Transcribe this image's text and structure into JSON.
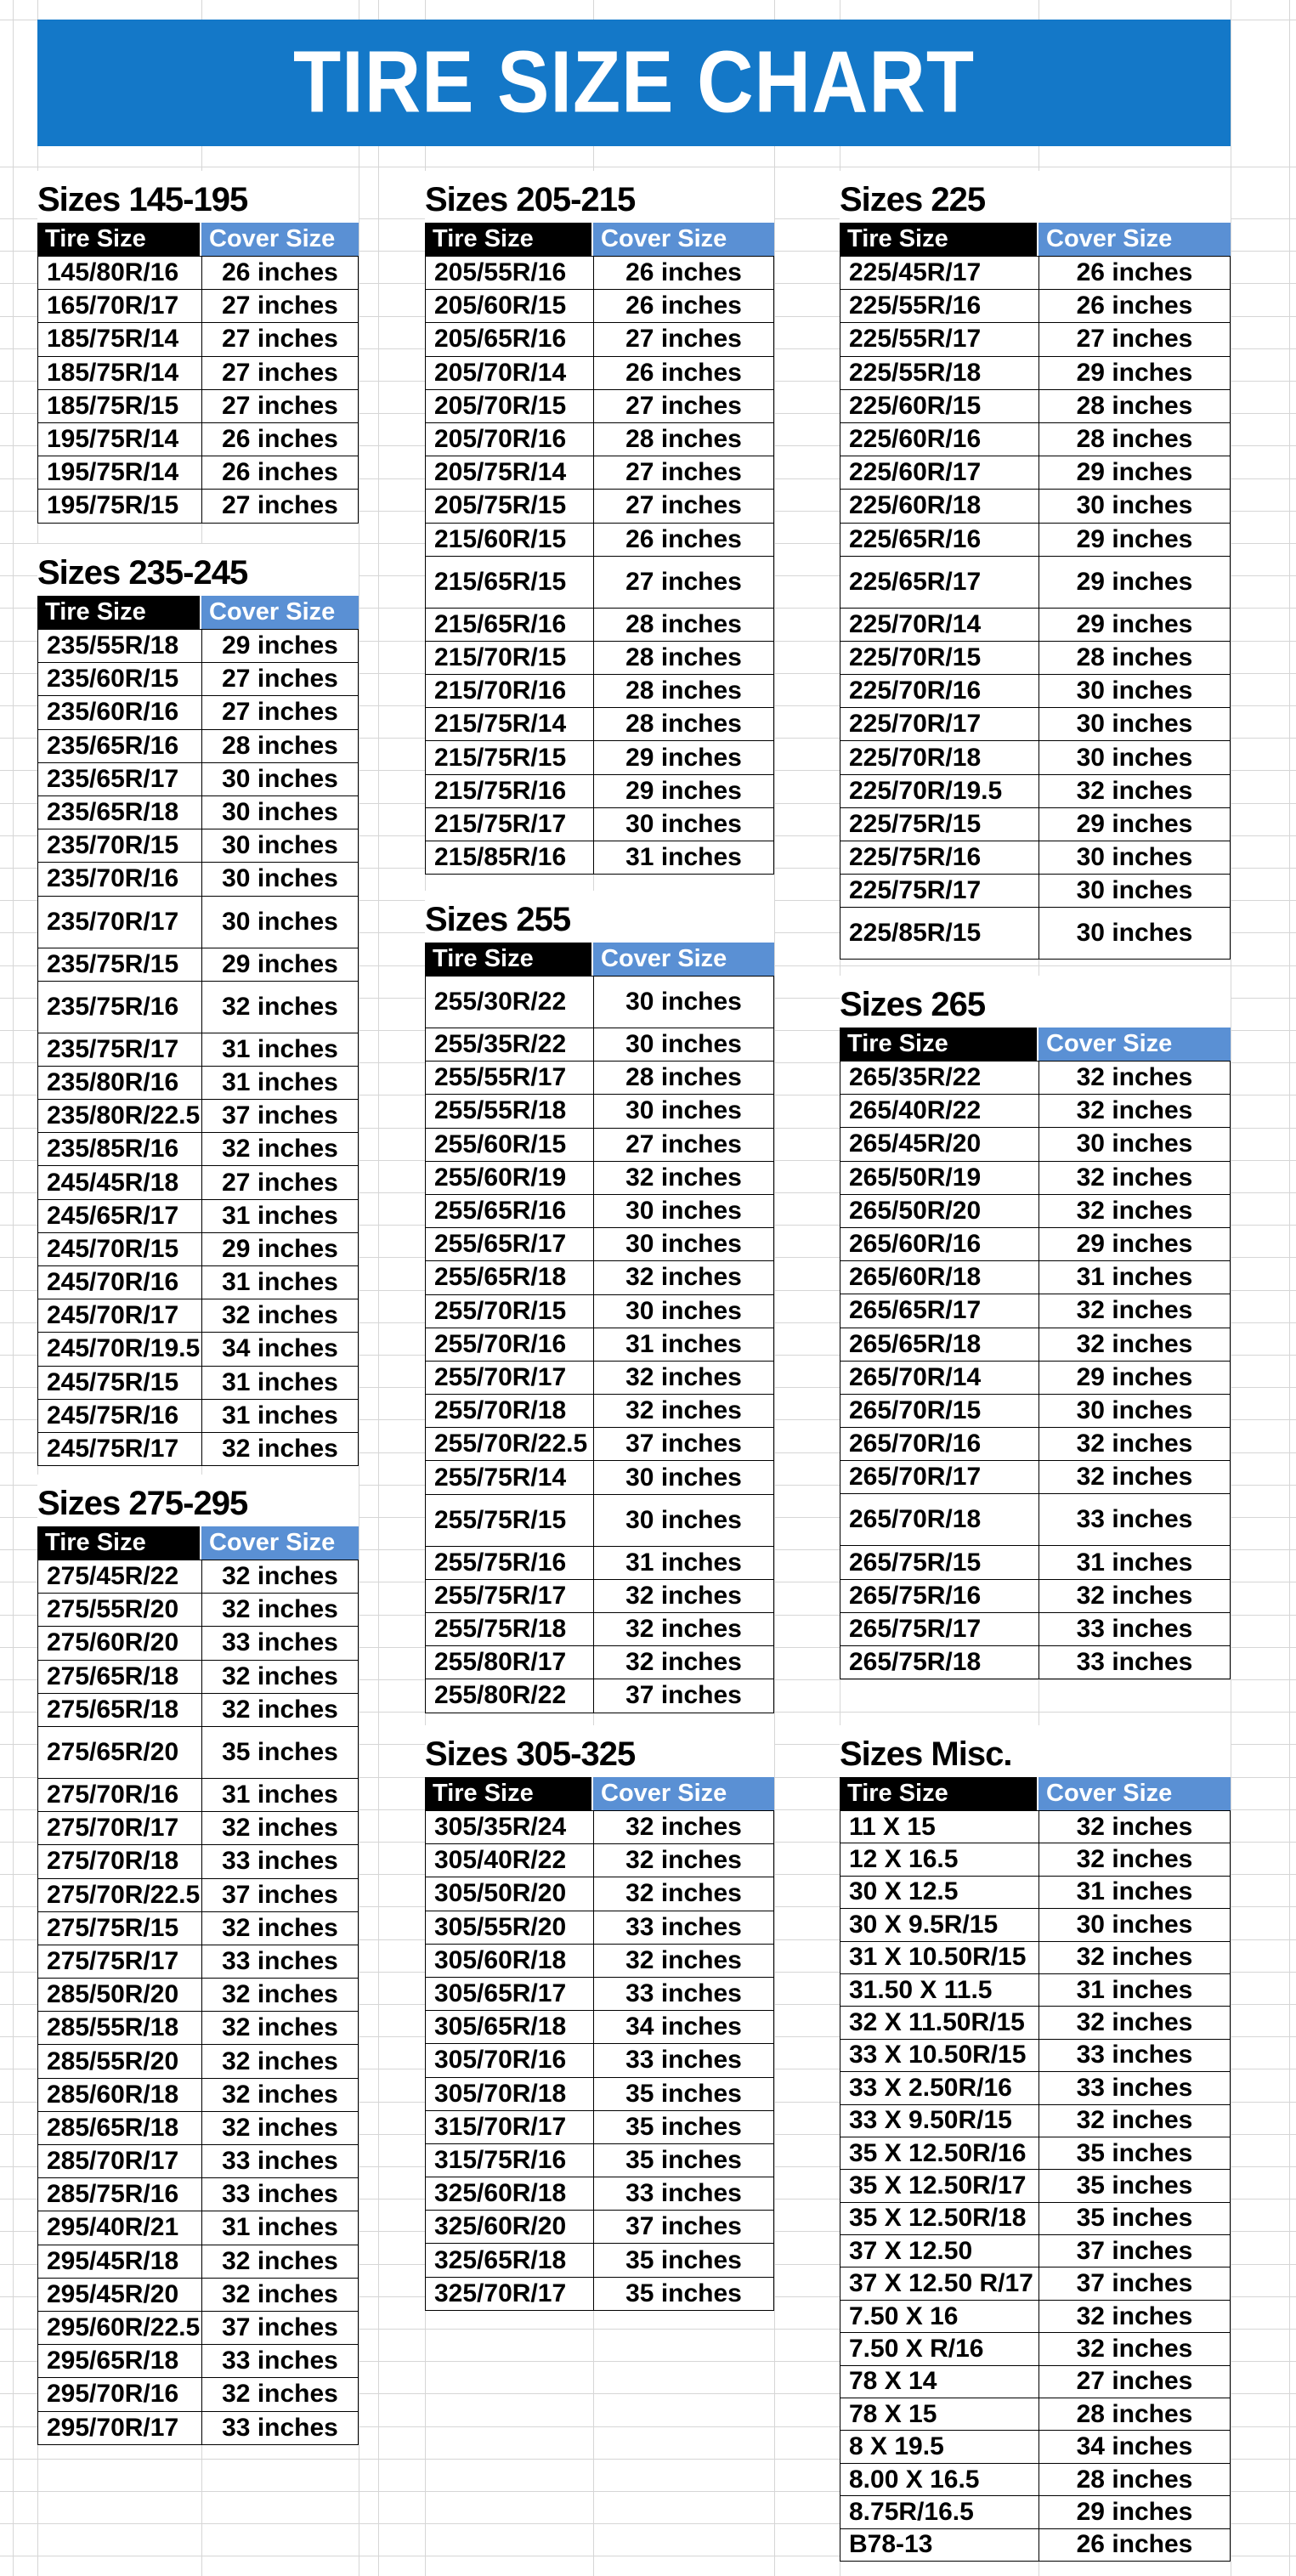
{
  "page_title": "TIRE SIZE CHART",
  "columns": {
    "tire": "Tire Size",
    "cover": "Cover Size"
  },
  "colors": {
    "title_bar_bg": "#1478c8",
    "title_text": "#ffffff",
    "tire_header_bg": "#000000",
    "cover_header_bg": "#5a90d4",
    "grid_line": "#d6d6d6"
  },
  "tables": [
    {
      "title": "Sizes 145-195",
      "tall_rows": [],
      "rows": [
        [
          "145/80R/16",
          "26 inches"
        ],
        [
          "165/70R/17",
          "27 inches"
        ],
        [
          "185/75R/14",
          "27 inches"
        ],
        [
          "185/75R/14",
          "27 inches"
        ],
        [
          "185/75R/15",
          "27 inches"
        ],
        [
          "195/75R/14",
          "26 inches"
        ],
        [
          "195/75R/14",
          "26 inches"
        ],
        [
          "195/75R/15",
          "27 inches"
        ]
      ]
    },
    {
      "title": "Sizes 205-215",
      "tall_rows": [
        9
      ],
      "rows": [
        [
          "205/55R/16",
          "26 inches"
        ],
        [
          "205/60R/15",
          "26 inches"
        ],
        [
          "205/65R/16",
          "27 inches"
        ],
        [
          "205/70R/14",
          "26 inches"
        ],
        [
          "205/70R/15",
          "27 inches"
        ],
        [
          "205/70R/16",
          "28 inches"
        ],
        [
          "205/75R/14",
          "27 inches"
        ],
        [
          "205/75R/15",
          "27 inches"
        ],
        [
          "215/60R/15",
          "26 inches"
        ],
        [
          "215/65R/15",
          "27 inches"
        ],
        [
          "215/65R/16",
          "28 inches"
        ],
        [
          "215/70R/15",
          "28 inches"
        ],
        [
          "215/70R/16",
          "28 inches"
        ],
        [
          "215/75R/14",
          "28 inches"
        ],
        [
          "215/75R/15",
          "29 inches"
        ],
        [
          "215/75R/16",
          "29 inches"
        ],
        [
          "215/75R/17",
          "30 inches"
        ],
        [
          "215/85R/16",
          "31 inches"
        ]
      ]
    },
    {
      "title": "Sizes 225",
      "tall_rows": [
        9,
        19
      ],
      "rows": [
        [
          "225/45R/17",
          "26 inches"
        ],
        [
          "225/55R/16",
          "26 inches"
        ],
        [
          "225/55R/17",
          "27 inches"
        ],
        [
          "225/55R/18",
          "29 inches"
        ],
        [
          "225/60R/15",
          "28 inches"
        ],
        [
          "225/60R/16",
          "28 inches"
        ],
        [
          "225/60R/17",
          "29 inches"
        ],
        [
          "225/60R/18",
          "30 inches"
        ],
        [
          "225/65R/16",
          "29 inches"
        ],
        [
          "225/65R/17",
          "29 inches"
        ],
        [
          "225/70R/14",
          "29 inches"
        ],
        [
          "225/70R/15",
          "28 inches"
        ],
        [
          "225/70R/16",
          "30 inches"
        ],
        [
          "225/70R/17",
          "30 inches"
        ],
        [
          "225/70R/18",
          "30 inches"
        ],
        [
          "225/70R/19.5",
          "32 inches"
        ],
        [
          "225/75R/15",
          "29 inches"
        ],
        [
          "225/75R/16",
          "30 inches"
        ],
        [
          "225/75R/17",
          "30 inches"
        ],
        [
          "225/85R/15",
          "30 inches"
        ]
      ]
    },
    {
      "title": "Sizes 235-245",
      "tall_rows": [
        8,
        10
      ],
      "rows": [
        [
          "235/55R/18",
          "29 inches"
        ],
        [
          "235/60R/15",
          "27 inches"
        ],
        [
          "235/60R/16",
          "27 inches"
        ],
        [
          "235/65R/16",
          "28 inches"
        ],
        [
          "235/65R/17",
          "30 inches"
        ],
        [
          "235/65R/18",
          "30 inches"
        ],
        [
          "235/70R/15",
          "30 inches"
        ],
        [
          "235/70R/16",
          "30 inches"
        ],
        [
          "235/70R/17",
          "30 inches"
        ],
        [
          "235/75R/15",
          "29 inches"
        ],
        [
          "235/75R/16",
          "32 inches"
        ],
        [
          "235/75R/17",
          "31 inches"
        ],
        [
          "235/80R/16",
          "31 inches"
        ],
        [
          "235/80R/22.5",
          "37 inches"
        ],
        [
          "235/85R/16",
          "32 inches"
        ],
        [
          "245/45R/18",
          "27 inches"
        ],
        [
          "245/65R/17",
          "31 inches"
        ],
        [
          "245/70R/15",
          "29 inches"
        ],
        [
          "245/70R/16",
          "31 inches"
        ],
        [
          "245/70R/17",
          "32 inches"
        ],
        [
          "245/70R/19.5",
          "34 inches"
        ],
        [
          "245/75R/15",
          "31 inches"
        ],
        [
          "245/75R/16",
          "31 inches"
        ],
        [
          "245/75R/17",
          "32 inches"
        ]
      ]
    },
    {
      "title": "Sizes 255",
      "tall_rows": [
        0,
        15
      ],
      "rows": [
        [
          "255/30R/22",
          "30 inches"
        ],
        [
          "255/35R/22",
          "30 inches"
        ],
        [
          "255/55R/17",
          "28 inches"
        ],
        [
          "255/55R/18",
          "30 inches"
        ],
        [
          "255/60R/15",
          "27 inches"
        ],
        [
          "255/60R/19",
          "32 inches"
        ],
        [
          "255/65R/16",
          "30 inches"
        ],
        [
          "255/65R/17",
          "30 inches"
        ],
        [
          "255/65R/18",
          "32 inches"
        ],
        [
          "255/70R/15",
          "30 inches"
        ],
        [
          "255/70R/16",
          "31 inches"
        ],
        [
          "255/70R/17",
          "32 inches"
        ],
        [
          "255/70R/18",
          "32 inches"
        ],
        [
          "255/70R/22.5",
          "37 inches"
        ],
        [
          "255/75R/14",
          "30 inches"
        ],
        [
          "255/75R/15",
          "30 inches"
        ],
        [
          "255/75R/16",
          "31 inches"
        ],
        [
          "255/75R/17",
          "32 inches"
        ],
        [
          "255/75R/18",
          "32 inches"
        ],
        [
          "255/80R/17",
          "32 inches"
        ],
        [
          "255/80R/22",
          "37 inches"
        ]
      ]
    },
    {
      "title": "Sizes 265",
      "tall_rows": [
        13
      ],
      "rows": [
        [
          "265/35R/22",
          "32 inches"
        ],
        [
          "265/40R/22",
          "32 inches"
        ],
        [
          "265/45R/20",
          "30 inches"
        ],
        [
          "265/50R/19",
          "32 inches"
        ],
        [
          "265/50R/20",
          "32 inches"
        ],
        [
          "265/60R/16",
          "29 inches"
        ],
        [
          "265/60R/18",
          "31 inches"
        ],
        [
          "265/65R/17",
          "32 inches"
        ],
        [
          "265/65R/18",
          "32 inches"
        ],
        [
          "265/70R/14",
          "29 inches"
        ],
        [
          "265/70R/15",
          "30 inches"
        ],
        [
          "265/70R/16",
          "32 inches"
        ],
        [
          "265/70R/17",
          "32 inches"
        ],
        [
          "265/70R/18",
          "33 inches"
        ],
        [
          "265/75R/15",
          "31 inches"
        ],
        [
          "265/75R/16",
          "32 inches"
        ],
        [
          "265/75R/17",
          "33 inches"
        ],
        [
          "265/75R/18",
          "33 inches"
        ]
      ]
    },
    {
      "title": "Sizes 275-295",
      "tall_rows": [
        5
      ],
      "rows": [
        [
          "275/45R/22",
          "32 inches"
        ],
        [
          "275/55R/20",
          "32 inches"
        ],
        [
          "275/60R/20",
          "33 inches"
        ],
        [
          "275/65R/18",
          "32 inches"
        ],
        [
          "275/65R/18",
          "32 inches"
        ],
        [
          "275/65R/20",
          "35 inches"
        ],
        [
          "275/70R/16",
          "31 inches"
        ],
        [
          "275/70R/17",
          "32 inches"
        ],
        [
          "275/70R/18",
          "33 inches"
        ],
        [
          "275/70R/22.5",
          "37 inches"
        ],
        [
          "275/75R/15",
          "32 inches"
        ],
        [
          "275/75R/17",
          "33 inches"
        ],
        [
          "285/50R/20",
          "32 inches"
        ],
        [
          "285/55R/18",
          "32 inches"
        ],
        [
          "285/55R/20",
          "32 inches"
        ],
        [
          "285/60R/18",
          "32 inches"
        ],
        [
          "285/65R/18",
          "32 inches"
        ],
        [
          "285/70R/17",
          "33 inches"
        ],
        [
          "285/75R/16",
          "33 inches"
        ],
        [
          "295/40R/21",
          "31 inches"
        ],
        [
          "295/45R/18",
          "32 inches"
        ],
        [
          "295/45R/20",
          "32 inches"
        ],
        [
          "295/60R/22.5",
          "37 inches"
        ],
        [
          "295/65R/18",
          "33 inches"
        ],
        [
          "295/70R/16",
          "32 inches"
        ],
        [
          "295/70R/17",
          "33 inches"
        ]
      ]
    },
    {
      "title": "Sizes 305-325",
      "tall_rows": [],
      "rows": [
        [
          "305/35R/24",
          "32 inches"
        ],
        [
          "305/40R/22",
          "32 inches"
        ],
        [
          "305/50R/20",
          "32 inches"
        ],
        [
          "305/55R/20",
          "33 inches"
        ],
        [
          "305/60R/18",
          "32 inches"
        ],
        [
          "305/65R/17",
          "33 inches"
        ],
        [
          "305/65R/18",
          "34 inches"
        ],
        [
          "305/70R/16",
          "33 inches"
        ],
        [
          "305/70R/18",
          "35 inches"
        ],
        [
          "315/70R/17",
          "35 inches"
        ],
        [
          "315/75R/16",
          "35 inches"
        ],
        [
          "325/60R/18",
          "33 inches"
        ],
        [
          "325/60R/20",
          "37 inches"
        ],
        [
          "325/65R/18",
          "35 inches"
        ],
        [
          "325/70R/17",
          "35 inches"
        ]
      ]
    },
    {
      "title": "Sizes Misc.",
      "tall_rows": [],
      "rows": [
        [
          "11 X 15",
          "32 inches"
        ],
        [
          "12 X 16.5",
          "32 inches"
        ],
        [
          "30 X 12.5",
          "31 inches"
        ],
        [
          "30 X 9.5R/15",
          "30 inches"
        ],
        [
          "31 X 10.50R/15",
          "32 inches"
        ],
        [
          "31.50 X 11.5",
          "31 inches"
        ],
        [
          "32 X 11.50R/15",
          "32 inches"
        ],
        [
          "33 X 10.50R/15",
          "33 inches"
        ],
        [
          "33 X 2.50R/16",
          "33 inches"
        ],
        [
          "33 X 9.50R/15",
          "32 inches"
        ],
        [
          "35 X 12.50R/16",
          "35 inches"
        ],
        [
          "35 X 12.50R/17",
          "35 inches"
        ],
        [
          "35 X 12.50R/18",
          "35 inches"
        ],
        [
          "37 X 12.50",
          "37 inches"
        ],
        [
          "37 X 12.50 R/17",
          "37 inches"
        ],
        [
          "7.50 X 16",
          "32 inches"
        ],
        [
          "7.50 X R/16",
          "32 inches"
        ],
        [
          "78 X 14",
          "27 inches"
        ],
        [
          "78 X 15",
          "28 inches"
        ],
        [
          "8 X 19.5",
          "34 inches"
        ],
        [
          "8.00 X 16.5",
          "28 inches"
        ],
        [
          "8.75R/16.5",
          "29 inches"
        ],
        [
          "B78-13",
          "26 inches"
        ]
      ]
    }
  ]
}
